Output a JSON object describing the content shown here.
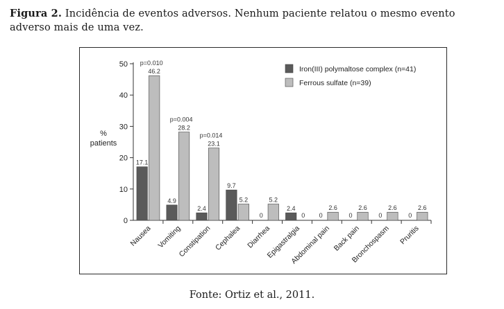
{
  "caption": {
    "label": "Figura 2.",
    "text": "Incidência de eventos adversos. Nenhum paciente relatou o mesmo evento adverso mais de uma vez."
  },
  "source": "Fonte: Ortiz et al., 2011.",
  "colors": {
    "iron": "#5a5a5a",
    "ferrous": "#bdbdbd",
    "axis": "#333333"
  },
  "chart_data": {
    "type": "bar",
    "title": "",
    "xlabel": "",
    "ylabel": "% patients",
    "ylim": [
      0,
      50
    ],
    "yticks": [
      0,
      10,
      20,
      30,
      40,
      50
    ],
    "grid": false,
    "legend_position": "top-right",
    "categories": [
      "Nausea",
      "Vomiting",
      "Constipation",
      "Cephalea",
      "Diarrhea",
      "Epigastralgia",
      "Abdominal pain",
      "Back pain",
      "Bronchospasm",
      "Pruritis"
    ],
    "series": [
      {
        "name": "Iron(III) polymaltose complex (n=41)",
        "values": [
          17.1,
          4.9,
          2.4,
          9.7,
          0,
          2.4,
          0,
          0,
          0,
          0
        ],
        "labels": [
          "17.1",
          "4.9",
          "2.4",
          "9.7",
          "0",
          "2.4",
          "0",
          "0",
          "0",
          "0"
        ]
      },
      {
        "name": "Ferrous sulfate (n=39)",
        "values": [
          46.2,
          28.2,
          23.1,
          5.2,
          5.2,
          0,
          2.6,
          2.6,
          2.6,
          2.6
        ],
        "labels": [
          "46.2",
          "28.2",
          "23.1",
          "5.2",
          "5.2",
          "0",
          "2.6",
          "2.6",
          "2.6",
          "2.6"
        ]
      }
    ],
    "annotations": [
      {
        "category_index": 0,
        "text": "p=0.010"
      },
      {
        "category_index": 1,
        "text": "p=0.004"
      },
      {
        "category_index": 2,
        "text": "p=0.014"
      }
    ]
  }
}
